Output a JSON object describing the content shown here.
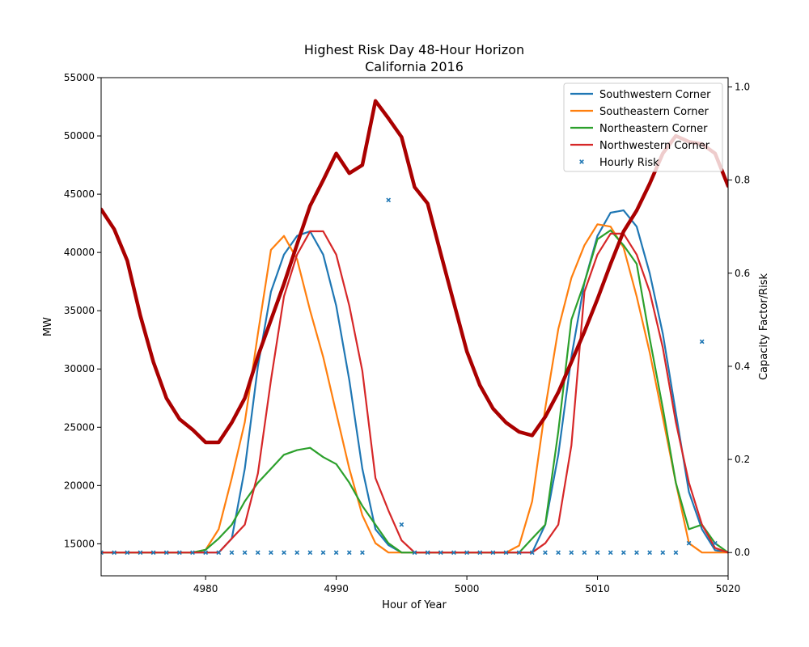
{
  "chart_data": {
    "type": "line",
    "title": "Highest Risk Day 48-Hour Horizon",
    "subtitle": "California 2016",
    "xlabel": "Hour of Year",
    "ylabel_left": "MW",
    "ylabel_right": "Capacity Factor/Risk",
    "xlim": [
      4972,
      5020
    ],
    "ylim_left": [
      12250,
      55000
    ],
    "ylim_right": [
      -0.05,
      1.02
    ],
    "x_ticks": [
      4980,
      4990,
      5000,
      5010,
      5020
    ],
    "y_left_ticks": [
      15000,
      20000,
      25000,
      30000,
      35000,
      40000,
      45000,
      50000,
      55000
    ],
    "y_right_ticks": [
      "0.0",
      "0.2",
      "0.4",
      "0.6",
      "0.8",
      "1.0"
    ],
    "legend_position": "top-right",
    "x": [
      4972,
      4973,
      4974,
      4975,
      4976,
      4977,
      4978,
      4979,
      4980,
      4981,
      4982,
      4983,
      4984,
      4985,
      4986,
      4987,
      4988,
      4989,
      4990,
      4991,
      4992,
      4993,
      4994,
      4995,
      4996,
      4997,
      4998,
      4999,
      5000,
      5001,
      5002,
      5003,
      5004,
      5005,
      5006,
      5007,
      5008,
      5009,
      5010,
      5011,
      5012,
      5013,
      5014,
      5015,
      5016,
      5017,
      5018,
      5019,
      5020
    ],
    "load": {
      "axis": "left",
      "color": "#aa0000",
      "values": [
        43700,
        42000,
        39300,
        34600,
        30600,
        27500,
        25700,
        24800,
        23700,
        23700,
        25400,
        27500,
        31100,
        34200,
        37300,
        40700,
        44000,
        46200,
        48500,
        46800,
        47500,
        53000,
        51500,
        49900,
        45600,
        44200,
        39900,
        35700,
        31500,
        28600,
        26600,
        25400,
        24600,
        24300,
        25900,
        28000,
        30600,
        33200,
        36000,
        39000,
        41800,
        43600,
        45900,
        48500,
        50000,
        49500,
        49300,
        48500,
        45700
      ]
    },
    "risk_points": {
      "name": "Hourly Risk",
      "axis": "right",
      "color": "#1f77b4",
      "x": [
        4972,
        4973,
        4974,
        4975,
        4976,
        4977,
        4978,
        4979,
        4980,
        4981,
        4982,
        4983,
        4984,
        4985,
        4986,
        4987,
        4988,
        4989,
        4990,
        4991,
        4992,
        4994,
        4995,
        4996,
        4997,
        4998,
        4999,
        5000,
        5001,
        5002,
        5003,
        5004,
        5005,
        5006,
        5007,
        5008,
        5009,
        5010,
        5011,
        5012,
        5013,
        5014,
        5015,
        5016,
        5017,
        5018,
        5019
      ],
      "values": [
        0,
        0,
        0,
        0,
        0,
        0,
        0,
        0,
        0,
        0,
        0,
        0,
        0,
        0,
        0,
        0,
        0,
        0,
        0,
        0,
        0,
        0.757,
        0.06,
        0,
        0,
        0,
        0,
        0,
        0,
        0,
        0,
        0,
        0,
        0,
        0,
        0,
        0,
        0,
        0,
        0,
        0,
        0,
        0,
        0,
        0.02,
        0.453,
        0.02
      ]
    },
    "series": [
      {
        "name": "Southwestern Corner",
        "axis": "right",
        "color": "#1f77b4",
        "values": [
          0,
          0,
          0,
          0,
          0,
          0,
          0,
          0,
          0,
          0,
          0.03,
          0.18,
          0.4,
          0.56,
          0.64,
          0.68,
          0.69,
          0.64,
          0.53,
          0.37,
          0.18,
          0.05,
          0.016,
          0,
          0,
          0,
          0,
          0,
          0,
          0,
          0,
          0,
          0,
          0,
          0.06,
          0.21,
          0.42,
          0.58,
          0.68,
          0.73,
          0.735,
          0.7,
          0.6,
          0.47,
          0.3,
          0.13,
          0.05,
          0.005,
          0
        ]
      },
      {
        "name": "Southeastern Corner",
        "axis": "right",
        "color": "#ff7f0e",
        "values": [
          0,
          0,
          0,
          0,
          0,
          0,
          0,
          0,
          0.006,
          0.05,
          0.16,
          0.28,
          0.47,
          0.65,
          0.68,
          0.63,
          0.52,
          0.42,
          0.3,
          0.18,
          0.08,
          0.02,
          0,
          0,
          0,
          0,
          0,
          0,
          0,
          0,
          0,
          0,
          0.015,
          0.11,
          0.31,
          0.48,
          0.59,
          0.66,
          0.705,
          0.7,
          0.655,
          0.55,
          0.43,
          0.29,
          0.15,
          0.02,
          0,
          0,
          0
        ]
      },
      {
        "name": "Northeastern Corner",
        "axis": "right",
        "color": "#2ca02c",
        "values": [
          0,
          0,
          0,
          0,
          0,
          0,
          0,
          0,
          0.006,
          0.03,
          0.06,
          0.11,
          0.15,
          0.18,
          0.21,
          0.22,
          0.225,
          0.205,
          0.19,
          0.15,
          0.1,
          0.06,
          0.02,
          0,
          0,
          0,
          0,
          0,
          0,
          0,
          0,
          0,
          0,
          0.03,
          0.06,
          0.26,
          0.5,
          0.58,
          0.673,
          0.692,
          0.66,
          0.62,
          0.46,
          0.31,
          0.15,
          0.05,
          0.06,
          0.02,
          0
        ]
      },
      {
        "name": "Northwestern Corner",
        "axis": "right",
        "color": "#d62728",
        "values": [
          0,
          0,
          0,
          0,
          0,
          0,
          0,
          0,
          0,
          0,
          0.03,
          0.06,
          0.17,
          0.37,
          0.55,
          0.64,
          0.69,
          0.69,
          0.64,
          0.53,
          0.39,
          0.16,
          0.09,
          0.026,
          0,
          0,
          0,
          0,
          0,
          0,
          0,
          0,
          0,
          0,
          0.02,
          0.06,
          0.23,
          0.56,
          0.64,
          0.685,
          0.685,
          0.64,
          0.56,
          0.44,
          0.28,
          0.15,
          0.06,
          0.01,
          0
        ]
      }
    ]
  }
}
